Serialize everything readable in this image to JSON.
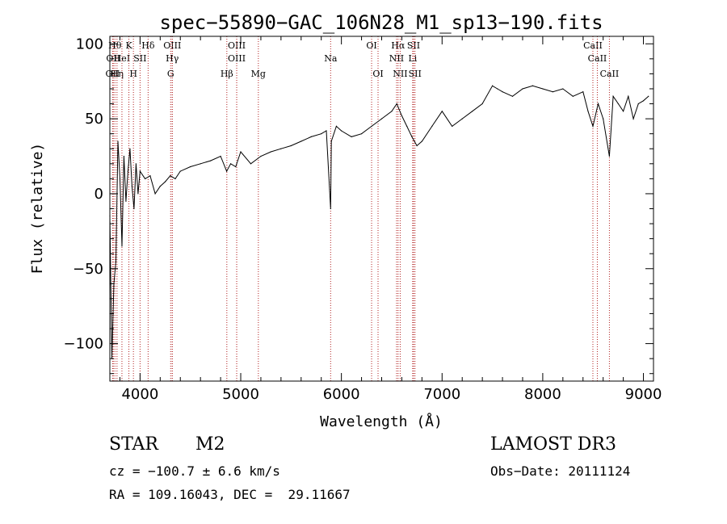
{
  "chart_data": {
    "type": "line",
    "title": "spec−55890−GAC_106N28_M1_sp13−190.fits",
    "xlabel": "Wavelength (Å)",
    "ylabel": "Flux (relative)",
    "xlim": [
      3700,
      9100
    ],
    "ylim": [
      -125,
      105
    ],
    "xticks": [
      4000,
      5000,
      6000,
      7000,
      8000,
      9000
    ],
    "xtick_labels": [
      "4000",
      "5000",
      "6000",
      "7000",
      "8000",
      "9000"
    ],
    "yticks": [
      100,
      50,
      0,
      -50,
      -100
    ],
    "ytick_labels": [
      "100",
      "50",
      "0",
      "−50",
      "−100"
    ],
    "series": [
      {
        "name": "spectrum",
        "x": [
          3700,
          3720,
          3740,
          3760,
          3780,
          3800,
          3820,
          3840,
          3860,
          3880,
          3900,
          3920,
          3940,
          3960,
          3980,
          4000,
          4050,
          4100,
          4150,
          4200,
          4250,
          4300,
          4350,
          4400,
          4500,
          4600,
          4700,
          4800,
          4860,
          4900,
          4950,
          5000,
          5100,
          5200,
          5300,
          5400,
          5500,
          5600,
          5700,
          5800,
          5850,
          5893,
          5900,
          5950,
          6000,
          6100,
          6200,
          6300,
          6400,
          6500,
          6550,
          6600,
          6650,
          6700,
          6750,
          6800,
          6900,
          7000,
          7100,
          7200,
          7300,
          7400,
          7500,
          7550,
          7600,
          7700,
          7800,
          7900,
          8000,
          8100,
          8200,
          8300,
          8400,
          8450,
          8498,
          8550,
          8600,
          8662,
          8700,
          8750,
          8800,
          8850,
          8900,
          8950,
          9000,
          9050
        ],
        "y": [
          -15,
          -110,
          -60,
          -45,
          35,
          10,
          -35,
          25,
          -5,
          15,
          30,
          5,
          -10,
          20,
          0,
          15,
          10,
          12,
          0,
          5,
          8,
          12,
          10,
          15,
          18,
          20,
          22,
          25,
          15,
          20,
          18,
          28,
          20,
          25,
          28,
          30,
          32,
          35,
          38,
          40,
          42,
          -10,
          35,
          45,
          42,
          38,
          40,
          45,
          50,
          55,
          60,
          52,
          45,
          38,
          32,
          35,
          45,
          55,
          45,
          50,
          55,
          60,
          72,
          70,
          68,
          65,
          70,
          72,
          70,
          68,
          70,
          65,
          68,
          55,
          45,
          60,
          50,
          25,
          65,
          60,
          55,
          65,
          50,
          60,
          62,
          65
        ]
      }
    ],
    "lines": [
      {
        "label": "OII",
        "x": 3727,
        "tier": "3"
      },
      {
        "label": "Hθ",
        "x": 3750,
        "tier": "1"
      },
      {
        "label": "OII",
        "x": 3734,
        "tier": "2"
      },
      {
        "label": "Hη",
        "x": 3771,
        "tier": "3"
      },
      {
        "label": "HeI",
        "x": 3820,
        "tier": "2"
      },
      {
        "label": "K",
        "x": 3889,
        "tier": "1"
      },
      {
        "label": "H",
        "x": 3934,
        "tier": "3"
      },
      {
        "label": "SII",
        "x": 4000,
        "tier": "2"
      },
      {
        "label": "Hδ",
        "x": 4080,
        "tier": "1"
      },
      {
        "label": "OIII",
        "x": 4320,
        "tier": "1"
      },
      {
        "label": "Hγ",
        "x": 4320,
        "tier": "2"
      },
      {
        "label": "G",
        "x": 4304,
        "tier": "3"
      },
      {
        "label": "Hβ",
        "x": 4862,
        "tier": "3"
      },
      {
        "label": "OIII",
        "x": 4960,
        "tier": "1"
      },
      {
        "label": "OIII",
        "x": 4960,
        "tier": "2"
      },
      {
        "label": "Mg",
        "x": 5175,
        "tier": "3"
      },
      {
        "label": "Na",
        "x": 5893,
        "tier": "2"
      },
      {
        "label": "OI",
        "x": 6300,
        "tier": "1"
      },
      {
        "label": "OI",
        "x": 6364,
        "tier": "3"
      },
      {
        "label": "Hα",
        "x": 6563,
        "tier": "1"
      },
      {
        "label": "NII",
        "x": 6548,
        "tier": "2"
      },
      {
        "label": "NII",
        "x": 6584,
        "tier": "3"
      },
      {
        "label": "SII",
        "x": 6717,
        "tier": "1"
      },
      {
        "label": "Li",
        "x": 6708,
        "tier": "2"
      },
      {
        "label": "SII",
        "x": 6731,
        "tier": "3"
      },
      {
        "label": "CaII",
        "x": 8498,
        "tier": "1"
      },
      {
        "label": "CaII",
        "x": 8542,
        "tier": "2"
      },
      {
        "label": "CaII",
        "x": 8662,
        "tier": "3"
      }
    ],
    "line_color": "#b22222"
  },
  "footer": {
    "object_class": "STAR",
    "subclass": "M2",
    "survey": "LAMOST DR3",
    "cz": "cz = −100.7 ± 6.6 km/s",
    "obs_date": "Obs−Date: 20111124",
    "radec": "RA = 109.16043, DEC =  29.11667"
  }
}
